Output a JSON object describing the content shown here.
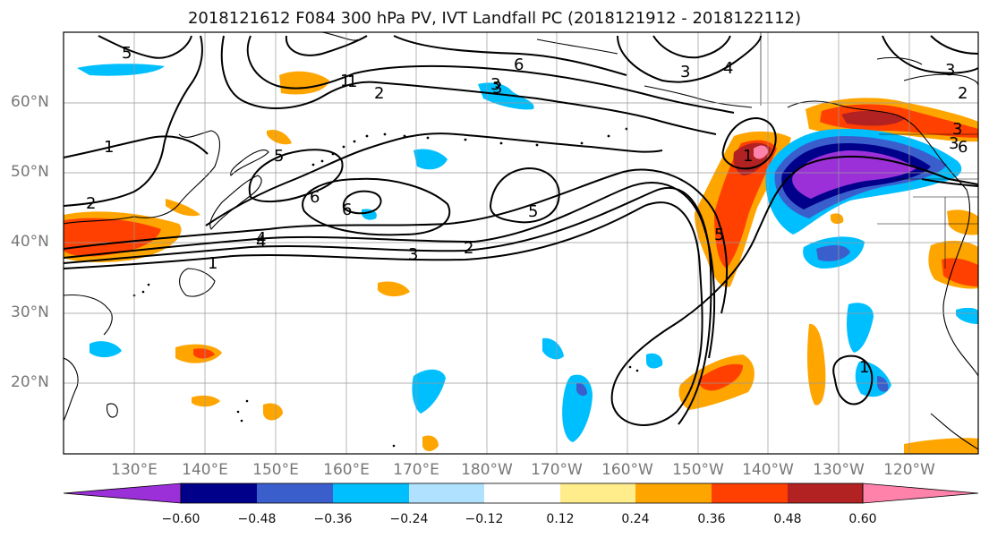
{
  "title": "2018121612 F084 300 hPa PV, IVT Landfall PC (2018121912 - 2018122112)",
  "lat_labels": [
    "60°N",
    "50°N",
    "40°N",
    "30°N",
    "20°N"
  ],
  "lon_labels": [
    "130°E",
    "140°E",
    "150°E",
    "160°E",
    "170°E",
    "180°W",
    "170°W",
    "160°W",
    "150°W",
    "140°W",
    "130°W",
    "120°W"
  ],
  "colorbar": {
    "colors": [
      "#9b30d9",
      "#00008b",
      "#3a5fcd",
      "#00bfff",
      "#b0e2ff",
      "#ffffff",
      "#ffec8b",
      "#ffa500",
      "#ff4000",
      "#b22222",
      "#ff82ab"
    ],
    "tick_labels": [
      "−0.60",
      "−0.48",
      "−0.36",
      "−0.24",
      "−0.12",
      "0.12",
      "0.24",
      "0.36",
      "0.48",
      "0.60"
    ]
  },
  "contour_labels": [
    "1",
    "2",
    "3",
    "4",
    "5",
    "6",
    "5",
    "3",
    "6",
    "2",
    "4",
    "3",
    "6",
    "1",
    "2",
    "1",
    "5",
    "3",
    "2",
    "5",
    "3",
    "1",
    "1",
    "6",
    "3",
    "4",
    "1",
    "3"
  ]
}
